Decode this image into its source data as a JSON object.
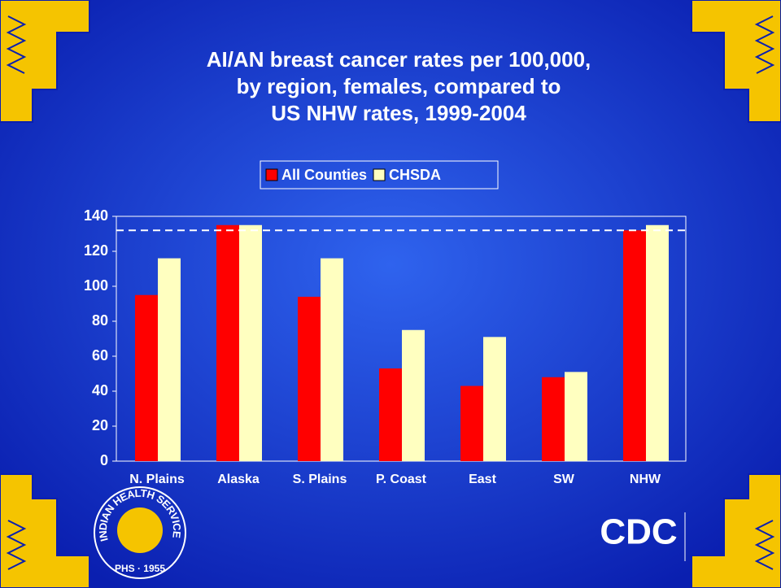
{
  "chart_data": {
    "type": "bar",
    "title_lines": [
      "AI/AN breast cancer rates per 100,000,",
      "by region, females, compared to",
      "US NHW rates, 1999-2004"
    ],
    "categories": [
      "N. Plains",
      "Alaska",
      "S. Plains",
      "P. Coast",
      "East",
      "SW",
      "NHW"
    ],
    "series": [
      {
        "name": "All Counties",
        "color": "#ff0000",
        "values": [
          95,
          135,
          94,
          53,
          43,
          48,
          132
        ]
      },
      {
        "name": "CHSDA",
        "color": "#ffffc0",
        "values": [
          116,
          135,
          116,
          75,
          71,
          51,
          135
        ]
      }
    ],
    "reference_line": 132,
    "ylim": [
      0,
      140
    ],
    "yticks": [
      0,
      20,
      40,
      60,
      80,
      100,
      120,
      140
    ],
    "legend": "top",
    "grid": false
  },
  "logos": {
    "ihs_ring": "INDIAN HEALTH SERVICE",
    "ihs_bottom": "PHS · 1955",
    "cdc": "CDC"
  }
}
